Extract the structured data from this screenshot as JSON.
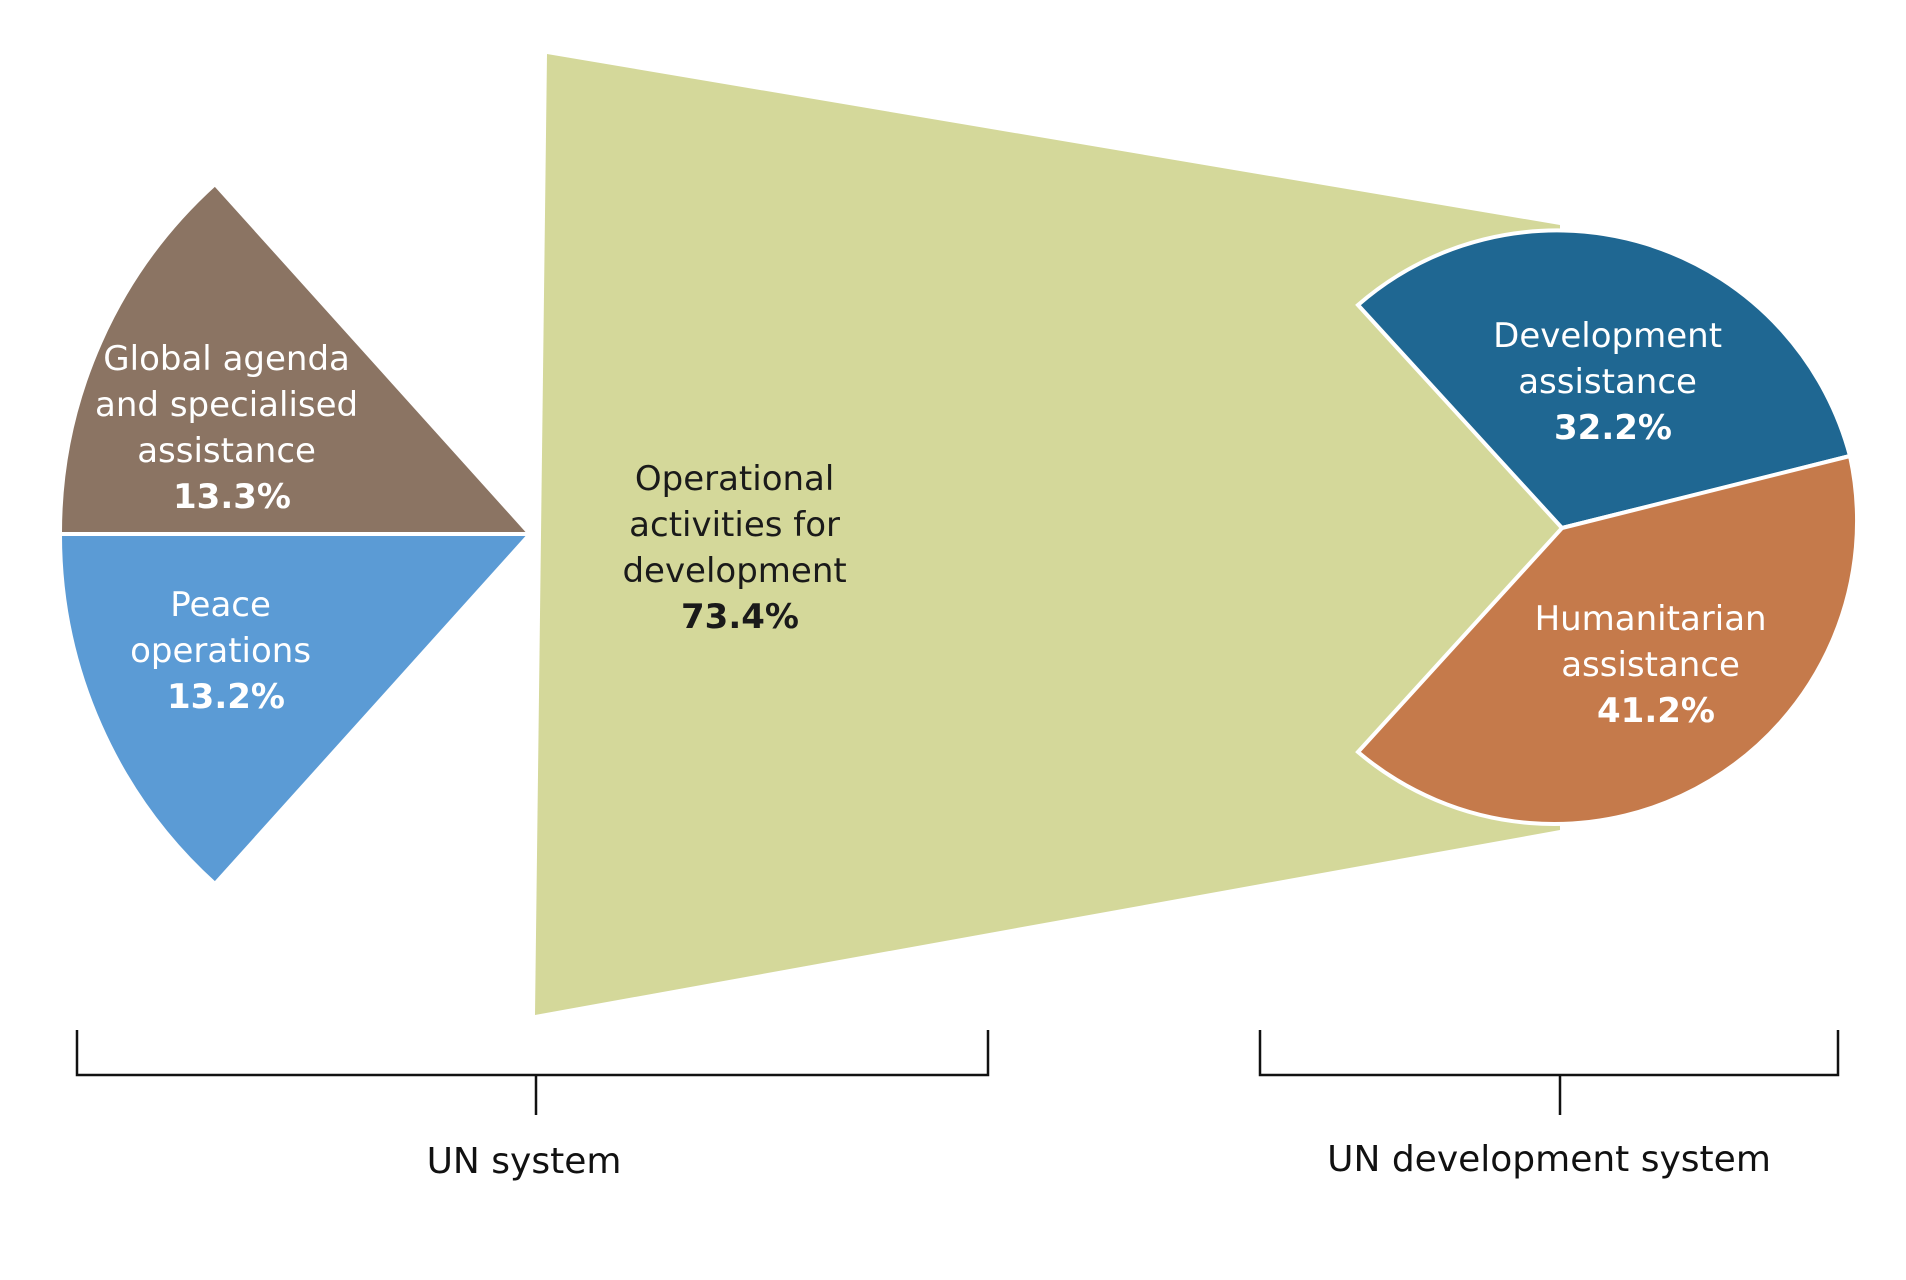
{
  "chart_data": {
    "type": "pie",
    "title": "",
    "groups": [
      {
        "name": "UN system",
        "slices": [
          {
            "label_lines": [
              "Global agenda",
              "and specialised",
              "assistance"
            ],
            "value": 13.3,
            "value_label": "13.3%",
            "color": "#8b7463"
          },
          {
            "label_lines": [
              "Peace",
              "operations"
            ],
            "value": 13.2,
            "value_label": "13.2%",
            "color": "#5b9bd5"
          },
          {
            "label_lines": [
              "Operational",
              "activities for",
              "development"
            ],
            "value": 73.4,
            "value_label": "73.4%",
            "color": "#d4d89a"
          }
        ]
      },
      {
        "name": "UN development system",
        "slices": [
          {
            "label_lines": [
              "Development",
              "assistance"
            ],
            "value": 32.2,
            "value_label": "32.2%",
            "color": "#1f6792"
          },
          {
            "label_lines": [
              "Humanitarian",
              "assistance"
            ],
            "value": 41.2,
            "value_label": "41.2%",
            "color": "#c57a4b"
          }
        ]
      }
    ]
  }
}
